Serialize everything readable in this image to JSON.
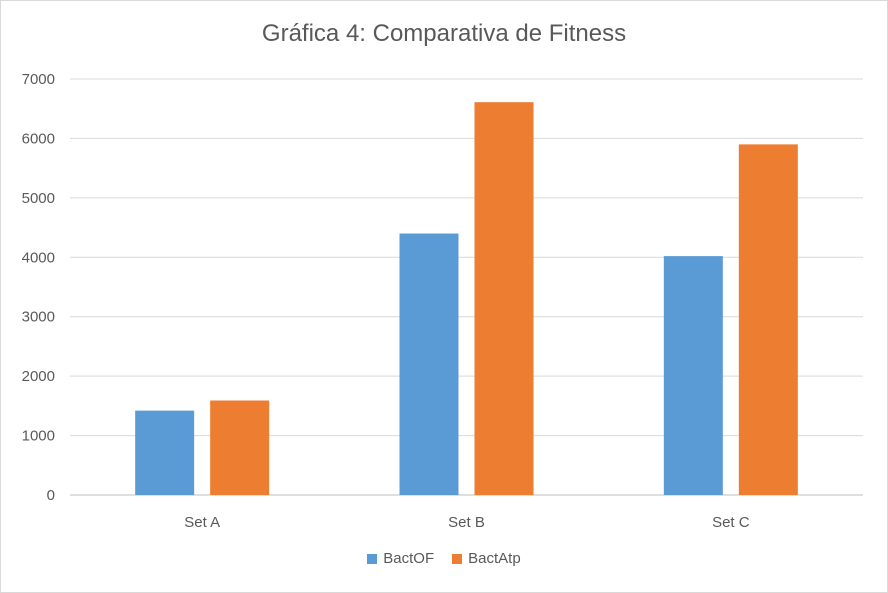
{
  "chart_data": {
    "type": "bar",
    "title": "Gráfica 4: Comparativa de Fitness",
    "xlabel": "",
    "ylabel": "",
    "categories": [
      "Set A",
      "Set B",
      "Set C"
    ],
    "series": [
      {
        "name": "BactOF",
        "values": [
          1420,
          4400,
          4020
        ],
        "color": "#5b9bd5"
      },
      {
        "name": "BactAtp",
        "values": [
          1590,
          6610,
          5900
        ],
        "color": "#ed7d31"
      }
    ],
    "ylim": [
      0,
      7000
    ],
    "yticks": [
      0,
      1000,
      2000,
      3000,
      4000,
      5000,
      6000,
      7000
    ],
    "grid": true,
    "legend_position": "bottom"
  }
}
